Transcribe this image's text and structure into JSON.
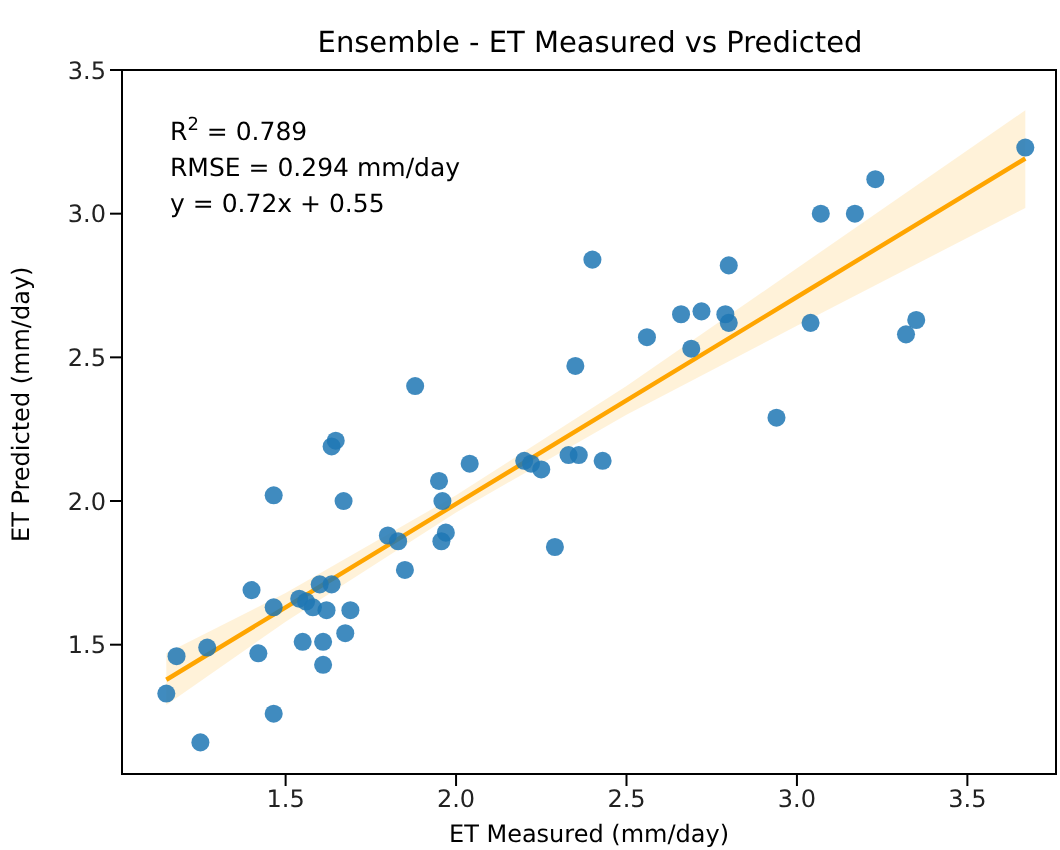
{
  "chart_data": {
    "type": "scatter",
    "title": "Ensemble - ET Measured vs Predicted",
    "xlabel": "ET Measured (mm/day)",
    "ylabel": "ET Predicted (mm/day)",
    "annotations": [
      "R$^{2}$ = 0.789",
      "RMSE = 0.294 mm/day",
      "y = 0.72x + 0.55"
    ],
    "x": [
      1.15,
      1.18,
      1.25,
      1.27,
      1.4,
      1.42,
      1.465,
      1.465,
      1.465,
      1.54,
      1.55,
      1.56,
      1.58,
      1.6,
      1.61,
      1.61,
      1.62,
      1.635,
      1.635,
      1.647,
      1.67,
      1.675,
      1.69,
      1.8,
      1.83,
      1.85,
      1.88,
      1.95,
      1.957,
      1.96,
      1.97,
      2.04,
      2.2,
      2.22,
      2.25,
      2.29,
      2.33,
      2.36,
      2.35,
      2.4,
      2.43,
      2.56,
      2.66,
      2.69,
      2.72,
      2.79,
      2.8,
      2.8,
      2.94,
      3.04,
      3.07,
      3.17,
      3.23,
      3.32,
      3.35,
      3.67
    ],
    "series": [
      {
        "color": "#1f77b4",
        "values": [
          1.33,
          1.46,
          1.16,
          1.49,
          1.69,
          1.47,
          1.63,
          2.02,
          1.26,
          1.66,
          1.51,
          1.65,
          1.63,
          1.71,
          1.51,
          1.43,
          1.62,
          1.71,
          2.19,
          2.21,
          2.0,
          1.54,
          1.62,
          1.88,
          1.86,
          1.76,
          2.4,
          2.07,
          1.86,
          2.0,
          1.89,
          2.13,
          2.14,
          2.13,
          2.11,
          1.84,
          2.16,
          2.16,
          2.47,
          2.84,
          2.14,
          2.57,
          2.65,
          2.53,
          2.66,
          2.65,
          2.62,
          2.82,
          2.29,
          2.62,
          3.0,
          3.0,
          3.12,
          2.58,
          2.63,
          3.23
        ]
      },
      {
        "type": "line",
        "marker": "none",
        "color": "#ffa500",
        "x": [
          1.15,
          1.5,
          2.0,
          2.5,
          3.0,
          3.67
        ],
        "values": [
          1.378,
          1.63,
          1.99,
          2.35,
          2.71,
          3.192
        ],
        "lower": [
          1.29,
          1.58,
          1.96,
          2.3,
          2.61,
          3.02
        ],
        "upper": [
          1.47,
          1.68,
          2.02,
          2.4,
          2.81,
          3.36
        ]
      }
    ],
    "xlim": [
      1.02,
      3.76
    ],
    "ylim": [
      1.05,
      3.5
    ],
    "xticks": [
      1.5,
      {
        "value": 2,
        "label": "2.0"
      },
      2.5,
      {
        "value": 3,
        "label": "3.0"
      },
      3.5
    ],
    "yticks": [
      1.5,
      {
        "value": 2,
        "label": "2.0"
      },
      2.5,
      {
        "value": 3,
        "label": "3.0"
      },
      3.5
    ],
    "grid": false,
    "legend": false,
    "marker": "circle",
    "line_style": "solid"
  }
}
